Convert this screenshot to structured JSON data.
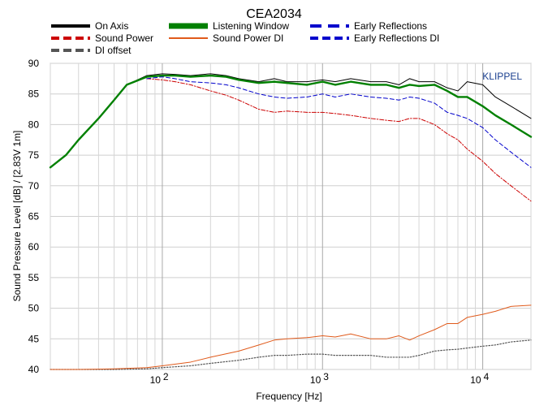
{
  "chart_data": {
    "type": "line",
    "title": "CEA2034",
    "brand": "KLIPPEL",
    "xlabel": "Frequency [Hz]",
    "ylabel": "Sound Pressure Level [dB]  / [2.83V 1m]",
    "xscale": "log",
    "xlim": [
      20,
      20000
    ],
    "ylim": [
      40,
      90
    ],
    "yticks": [
      40,
      45,
      50,
      55,
      60,
      65,
      70,
      75,
      80,
      85,
      90
    ],
    "xticks": [
      {
        "value": 100,
        "base": "10",
        "exp": "2"
      },
      {
        "value": 1000,
        "base": "10",
        "exp": "3"
      },
      {
        "value": 10000,
        "base": "10",
        "exp": "4"
      }
    ],
    "grid": true,
    "legend_placement": "top",
    "series": [
      {
        "name": "On Axis",
        "color": "#000000",
        "style": "solid-thin",
        "x": [
          20,
          25,
          30,
          40,
          50,
          60,
          80,
          100,
          120,
          150,
          200,
          250,
          300,
          400,
          500,
          600,
          800,
          1000,
          1200,
          1500,
          2000,
          2500,
          3000,
          3500,
          4000,
          5000,
          6000,
          7000,
          8000,
          10000,
          12000,
          15000,
          20000
        ],
        "y": [
          73,
          75,
          77.5,
          81,
          84,
          86.5,
          88,
          88.3,
          88.2,
          88,
          88.3,
          88,
          87.5,
          87,
          87.5,
          87,
          87,
          87.3,
          87,
          87.5,
          87,
          87,
          86.5,
          87.5,
          87,
          87,
          86,
          85.5,
          87,
          86.5,
          84.5,
          83,
          81
        ]
      },
      {
        "name": "Listening Window",
        "color": "#008000",
        "style": "solid-thick",
        "x": [
          20,
          25,
          30,
          40,
          50,
          60,
          80,
          100,
          120,
          150,
          200,
          250,
          300,
          400,
          500,
          600,
          800,
          1000,
          1200,
          1500,
          2000,
          2500,
          3000,
          3500,
          4000,
          5000,
          6000,
          7000,
          8000,
          10000,
          12000,
          15000,
          20000
        ],
        "y": [
          73,
          75,
          77.5,
          81,
          84,
          86.5,
          87.8,
          88,
          88,
          87.8,
          88,
          87.8,
          87.3,
          86.8,
          87,
          86.8,
          86.5,
          87,
          86.5,
          87,
          86.5,
          86.5,
          86,
          86.5,
          86.3,
          86.5,
          85.5,
          84.5,
          84.5,
          83,
          81.5,
          80,
          78
        ]
      },
      {
        "name": "Early Reflections",
        "color": "#0000cc",
        "style": "dash",
        "x": [
          80,
          100,
          120,
          150,
          200,
          250,
          300,
          400,
          500,
          600,
          800,
          1000,
          1200,
          1500,
          2000,
          2500,
          3000,
          3500,
          4000,
          5000,
          6000,
          7000,
          8000,
          10000,
          12000,
          15000,
          20000
        ],
        "y": [
          87.5,
          87.8,
          87.5,
          87,
          86.8,
          86.5,
          86,
          85,
          84.5,
          84.3,
          84.5,
          85,
          84.5,
          85,
          84.5,
          84.3,
          84,
          84.5,
          84.3,
          83.5,
          82,
          81.5,
          81,
          79.5,
          77.5,
          75.5,
          73
        ]
      },
      {
        "name": "Sound Power",
        "color": "#cc0000",
        "style": "dash-dot",
        "x": [
          80,
          100,
          120,
          150,
          200,
          250,
          300,
          400,
          500,
          600,
          800,
          1000,
          1200,
          1500,
          2000,
          2500,
          3000,
          3500,
          4000,
          5000,
          6000,
          7000,
          8000,
          10000,
          12000,
          15000,
          20000
        ],
        "y": [
          87.5,
          87.3,
          87,
          86.5,
          85.5,
          84.8,
          84,
          82.5,
          82,
          82.2,
          82,
          82,
          81.8,
          81.5,
          81,
          80.7,
          80.5,
          81,
          81,
          80,
          78.5,
          77.5,
          76,
          74,
          72,
          70,
          67.5
        ]
      },
      {
        "name": "Sound Power DI",
        "color": "#e05a1b",
        "style": "solid-thin",
        "x": [
          20,
          30,
          50,
          80,
          100,
          150,
          200,
          300,
          400,
          500,
          600,
          800,
          1000,
          1200,
          1500,
          2000,
          2500,
          3000,
          3500,
          4000,
          5000,
          6000,
          7000,
          8000,
          10000,
          12000,
          15000,
          20000
        ],
        "y": [
          40,
          40,
          40.1,
          40.3,
          40.6,
          41.2,
          42,
          43,
          44,
          44.8,
          45,
          45.2,
          45.5,
          45.3,
          45.8,
          45,
          45,
          45.5,
          44.8,
          45.5,
          46.5,
          47.5,
          47.5,
          48.5,
          49,
          49.5,
          50.3,
          50.5
        ]
      },
      {
        "name": "Early Reflections DI",
        "color": "#0000cc",
        "style": "dash-thick",
        "legend_only": true,
        "x": [],
        "y": []
      },
      {
        "name": "DI offset",
        "color": "#555555",
        "style": "dot",
        "x": [
          20,
          30,
          50,
          80,
          100,
          150,
          200,
          300,
          400,
          500,
          600,
          800,
          1000,
          1200,
          1500,
          2000,
          2500,
          3000,
          3500,
          4000,
          5000,
          6000,
          7000,
          8000,
          10000,
          12000,
          15000,
          20000
        ],
        "y": [
          40,
          40,
          40,
          40.1,
          40.3,
          40.6,
          41,
          41.5,
          42,
          42.3,
          42.3,
          42.5,
          42.5,
          42.3,
          42.3,
          42.3,
          42,
          42,
          42,
          42.3,
          43,
          43.2,
          43.3,
          43.5,
          43.8,
          44,
          44.5,
          44.8
        ]
      }
    ]
  }
}
